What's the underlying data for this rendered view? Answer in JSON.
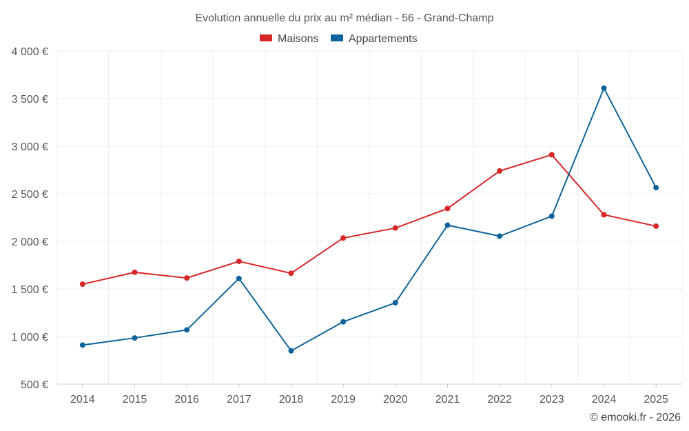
{
  "chart_data": {
    "type": "line",
    "title": "Evolution annuelle du prix au m² médian - 56 - Grand-Champ",
    "categories": [
      "2014",
      "2015",
      "2016",
      "2017",
      "2018",
      "2019",
      "2020",
      "2021",
      "2022",
      "2023",
      "2024",
      "2025"
    ],
    "series": [
      {
        "name": "Maisons",
        "color": "#d62728",
        "values": [
          1550,
          1675,
          1615,
          1790,
          1665,
          2035,
          2140,
          2345,
          2740,
          2910,
          2280,
          2160
        ]
      },
      {
        "name": "Appartements",
        "color": "#0d6399",
        "values": [
          910,
          985,
          1070,
          1610,
          850,
          1155,
          1355,
          2170,
          2055,
          2265,
          3610,
          2565
        ]
      }
    ],
    "ylim": [
      500,
      4000
    ],
    "yticks": [
      500,
      1000,
      1500,
      2000,
      2500,
      3000,
      3500,
      4000
    ],
    "ytick_labels": [
      "500 €",
      "1 000 €",
      "1 500 €",
      "2 000 €",
      "2 500 €",
      "3 000 €",
      "3 500 €",
      "4 000 €"
    ],
    "grid": true,
    "legend_position": "top-center"
  },
  "credit": "© emooki.fr - 2026"
}
